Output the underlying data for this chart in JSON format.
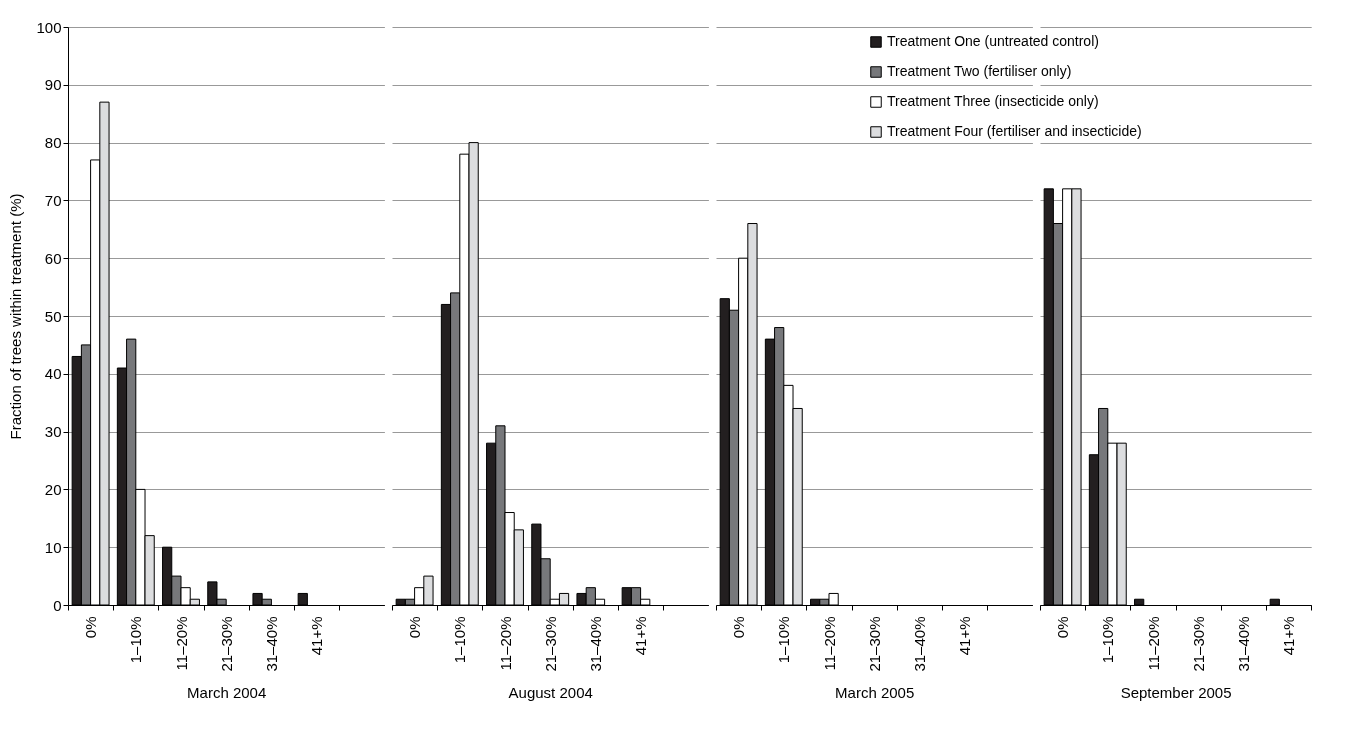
{
  "chart_data": [
    {
      "type": "bar",
      "xlabel": "March 2004",
      "ylabel": "Fraction of trees within treatment (%)",
      "categories": [
        "0%",
        "1–10%",
        "11–20%",
        "21–30%",
        "31–40%",
        "41+%"
      ],
      "ylim": [
        0,
        100
      ],
      "yticks": [
        0,
        10,
        20,
        30,
        40,
        50,
        60,
        70,
        80,
        90,
        100
      ],
      "grid": "y",
      "series": [
        {
          "color": "#231f20",
          "values": [
            43,
            41,
            10,
            4,
            2,
            2
          ]
        },
        {
          "color": "#77787b",
          "values": [
            45,
            46,
            5,
            1,
            1,
            0
          ]
        },
        {
          "color": "#ffffff",
          "values": [
            77,
            20,
            3,
            0,
            0,
            0
          ]
        },
        {
          "color": "#dcdddf",
          "values": [
            87,
            12,
            1,
            0,
            0,
            0
          ]
        }
      ]
    },
    {
      "type": "bar",
      "xlabel": "August 2004",
      "categories": [
        "0%",
        "1–10%",
        "11–20%",
        "21–30%",
        "31–40%",
        "41+%"
      ],
      "ylim": [
        0,
        100
      ],
      "yticks": [
        0,
        10,
        20,
        30,
        40,
        50,
        60,
        70,
        80,
        90,
        100
      ],
      "grid": "y",
      "tick_labels": "x",
      "series": [
        {
          "color": "#231f20",
          "values": [
            1,
            52,
            28,
            14,
            2,
            3
          ]
        },
        {
          "color": "#77787b",
          "values": [
            1,
            54,
            31,
            8,
            3,
            3
          ]
        },
        {
          "color": "#ffffff",
          "values": [
            3,
            78,
            16,
            1,
            1,
            1
          ]
        },
        {
          "color": "#dcdddf",
          "values": [
            5,
            80,
            13,
            2,
            0,
            0
          ]
        }
      ]
    },
    {
      "type": "bar",
      "xlabel": "March 2005",
      "categories": [
        "0%",
        "1–10%",
        "11–20%",
        "21–30%",
        "31–40%",
        "41+%"
      ],
      "ylim": [
        0,
        100
      ],
      "yticks": [
        0,
        10,
        20,
        30,
        40,
        50,
        60,
        70,
        80,
        90,
        100
      ],
      "grid": "y",
      "legend": "top right",
      "tick_labels": "x",
      "series": [
        {
          "name": "Treatment One (untreated control)",
          "color": "#231f20",
          "values": [
            53,
            46,
            1,
            0,
            0,
            0
          ]
        },
        {
          "name": "Treatment Two (fertiliser only)",
          "color": "#77787b",
          "values": [
            51,
            48,
            1,
            0,
            0,
            0
          ]
        },
        {
          "name": "Treatment Three (insecticide only)",
          "color": "#ffffff",
          "values": [
            60,
            38,
            2,
            0,
            0,
            0
          ]
        },
        {
          "name": "Treatment Four (fertiliser and insecticide)",
          "color": "#dcdddf",
          "values": [
            66,
            34,
            0,
            0,
            0,
            0
          ]
        }
      ]
    },
    {
      "type": "bar",
      "xlabel": "September 2005",
      "categories": [
        "0%",
        "1–10%",
        "11–20%",
        "21–30%",
        "31–40%",
        "41+%"
      ],
      "ylim": [
        0,
        100
      ],
      "yticks": [
        0,
        10,
        20,
        30,
        40,
        50,
        60,
        70,
        80,
        90,
        100
      ],
      "grid": "y",
      "tick_labels": "x",
      "series": [
        {
          "color": "#231f20",
          "values": [
            72,
            26,
            1,
            0,
            0,
            1
          ]
        },
        {
          "color": "#77787b",
          "values": [
            66,
            34,
            0,
            0,
            0,
            0
          ]
        },
        {
          "color": "#ffffff",
          "values": [
            72,
            28,
            0,
            0,
            0,
            0
          ]
        },
        {
          "color": "#dcdddf",
          "values": [
            72,
            28,
            0,
            0,
            0,
            0
          ]
        }
      ]
    }
  ]
}
